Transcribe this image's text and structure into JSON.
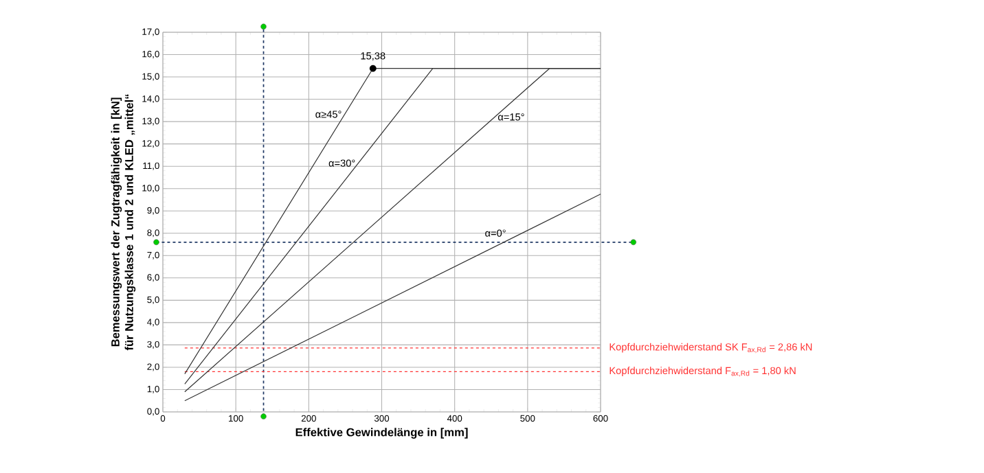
{
  "chart_data": {
    "type": "line",
    "xlabel": "Effektive Gewindelänge in [mm]",
    "ylabel": "Bemessungswert der Zugtragfähigkeit in [kN] für Nutzungsklasse 1 und 2 und KLED „mittel“",
    "series": [
      {
        "name": "α=0°",
        "color": "#333333",
        "x": [
          30,
          600
        ],
        "values": [
          0.5,
          9.75
        ]
      },
      {
        "name": "α=15°",
        "color": "#333333",
        "x": [
          30,
          530,
          600
        ],
        "values": [
          0.9,
          15.38,
          15.38
        ]
      },
      {
        "name": "α=30°",
        "color": "#333333",
        "x": [
          30,
          370,
          600
        ],
        "values": [
          1.25,
          15.38,
          15.38
        ]
      },
      {
        "name": "α≥45°",
        "color": "#333333",
        "x": [
          30,
          288,
          600
        ],
        "values": [
          1.7,
          15.38,
          15.38
        ]
      },
      {
        "type": "scatter",
        "marker": "circle",
        "color": "#000000",
        "x": [
          288
        ],
        "values": [
          15.38
        ],
        "value_labels": [
          "15,38"
        ]
      }
    ],
    "xlim": [
      0,
      600
    ],
    "xticks": [
      0,
      100,
      200,
      300,
      400,
      500,
      600
    ],
    "ylim": [
      0,
      17
    ],
    "yticks": [
      {
        "value": 0,
        "label": "0,0"
      },
      {
        "value": 1,
        "label": "1,0"
      },
      {
        "value": 2,
        "label": "2,0"
      },
      {
        "value": 3,
        "label": "3,0"
      },
      {
        "value": 4,
        "label": "4,0"
      },
      {
        "value": 5,
        "label": "5,0"
      },
      {
        "value": 6,
        "label": "6,0"
      },
      {
        "value": 7,
        "label": "7,0"
      },
      {
        "value": 8,
        "label": "8,0"
      },
      {
        "value": 9,
        "label": "9,0"
      },
      {
        "value": 10,
        "label": "10,0"
      },
      {
        "value": 11,
        "label": "11,0"
      },
      {
        "value": 12,
        "label": "12,0"
      },
      {
        "value": 13,
        "label": "13,0"
      },
      {
        "value": 14,
        "label": "14,0"
      },
      {
        "value": 15,
        "label": "15,0"
      },
      {
        "value": 16,
        "label": "16,0"
      },
      {
        "value": 17,
        "label": "17,0"
      }
    ],
    "grid": true,
    "marker": "none",
    "line_style": "solid",
    "ref_lines": [
      {
        "axis": "x",
        "value": 138,
        "color": "#1f3864",
        "line_style": "dashed"
      },
      {
        "axis": "y",
        "value": 7.6,
        "color": "#1f3864",
        "line_style": "dashed"
      },
      {
        "axis": "y",
        "value": 2.86,
        "color": "#ff3333",
        "line_style": "dashed",
        "label": "Kopfdurchziehwiderstand SK F$_{ax,Rd}$ = 2,86 kN"
      },
      {
        "axis": "y",
        "value": 1.8,
        "color": "#ff3333",
        "line_style": "dashed",
        "label": "Kopfdurchziehwiderstand F$_{ax,Rd}$ = 1,80 kN"
      }
    ]
  }
}
